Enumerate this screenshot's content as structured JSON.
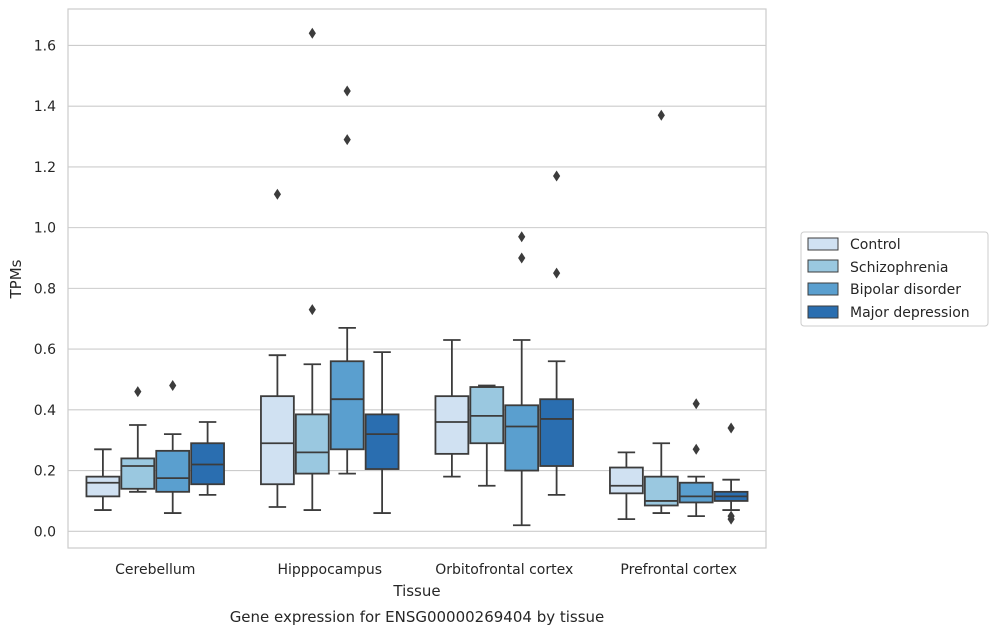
{
  "chart_data": {
    "type": "box",
    "title": "",
    "caption": "Gene expression for ENSG00000269404 by tissue",
    "xlabel": "Tissue",
    "ylabel": "TPMs",
    "ylim": [
      -0.055,
      1.72
    ],
    "yticks": [
      0.0,
      0.2,
      0.4,
      0.6,
      0.8,
      1.0,
      1.2,
      1.4,
      1.6
    ],
    "ytick_labels": [
      "0.0",
      "0.2",
      "0.4",
      "0.6",
      "0.8",
      "1.0",
      "1.2",
      "1.4",
      "1.6"
    ],
    "grid": "horizontal",
    "legend_position": "right",
    "categories": [
      "Cerebellum",
      "Hipppocampus",
      "Orbitofrontal cortex",
      "Prefrontal cortex"
    ],
    "series": [
      {
        "name": "Control",
        "color": "#d0e1f2",
        "boxes": [
          {
            "whislo": 0.07,
            "q1": 0.115,
            "med": 0.16,
            "q3": 0.18,
            "whishi": 0.27,
            "fliers": []
          },
          {
            "whislo": 0.08,
            "q1": 0.155,
            "med": 0.29,
            "q3": 0.445,
            "whishi": 0.58,
            "fliers": [
              1.11
            ]
          },
          {
            "whislo": 0.18,
            "q1": 0.255,
            "med": 0.36,
            "q3": 0.445,
            "whishi": 0.63,
            "fliers": []
          },
          {
            "whislo": 0.04,
            "q1": 0.125,
            "med": 0.15,
            "q3": 0.21,
            "whishi": 0.26,
            "fliers": []
          }
        ]
      },
      {
        "name": "Schizophrenia",
        "color": "#9ac8e0",
        "boxes": [
          {
            "whislo": 0.13,
            "q1": 0.14,
            "med": 0.215,
            "q3": 0.24,
            "whishi": 0.35,
            "fliers": [
              0.46
            ]
          },
          {
            "whislo": 0.07,
            "q1": 0.19,
            "med": 0.26,
            "q3": 0.385,
            "whishi": 0.55,
            "fliers": [
              0.73,
              1.64
            ]
          },
          {
            "whislo": 0.15,
            "q1": 0.29,
            "med": 0.38,
            "q3": 0.475,
            "whishi": 0.48,
            "fliers": []
          },
          {
            "whislo": 0.06,
            "q1": 0.085,
            "med": 0.1,
            "q3": 0.18,
            "whishi": 0.29,
            "fliers": [
              1.37
            ]
          }
        ]
      },
      {
        "name": "Bipolar disorder",
        "color": "#5a9fcf",
        "boxes": [
          {
            "whislo": 0.06,
            "q1": 0.13,
            "med": 0.175,
            "q3": 0.265,
            "whishi": 0.32,
            "fliers": [
              0.48
            ]
          },
          {
            "whislo": 0.19,
            "q1": 0.27,
            "med": 0.435,
            "q3": 0.56,
            "whishi": 0.67,
            "fliers": [
              1.29,
              1.45
            ]
          },
          {
            "whislo": 0.02,
            "q1": 0.2,
            "med": 0.345,
            "q3": 0.415,
            "whishi": 0.63,
            "fliers": [
              0.9,
              0.97
            ]
          },
          {
            "whislo": 0.05,
            "q1": 0.095,
            "med": 0.115,
            "q3": 0.16,
            "whishi": 0.18,
            "fliers": [
              0.27,
              0.42
            ]
          }
        ]
      },
      {
        "name": "Major depression",
        "color": "#2a6eb0",
        "boxes": [
          {
            "whislo": 0.12,
            "q1": 0.155,
            "med": 0.22,
            "q3": 0.29,
            "whishi": 0.36,
            "fliers": []
          },
          {
            "whislo": 0.06,
            "q1": 0.205,
            "med": 0.32,
            "q3": 0.385,
            "whishi": 0.59,
            "fliers": []
          },
          {
            "whislo": 0.12,
            "q1": 0.215,
            "med": 0.37,
            "q3": 0.435,
            "whishi": 0.56,
            "fliers": [
              0.85,
              1.17
            ]
          },
          {
            "whislo": 0.07,
            "q1": 0.1,
            "med": 0.115,
            "q3": 0.13,
            "whishi": 0.17,
            "fliers": [
              0.04,
              0.05,
              0.34
            ]
          }
        ]
      }
    ]
  }
}
